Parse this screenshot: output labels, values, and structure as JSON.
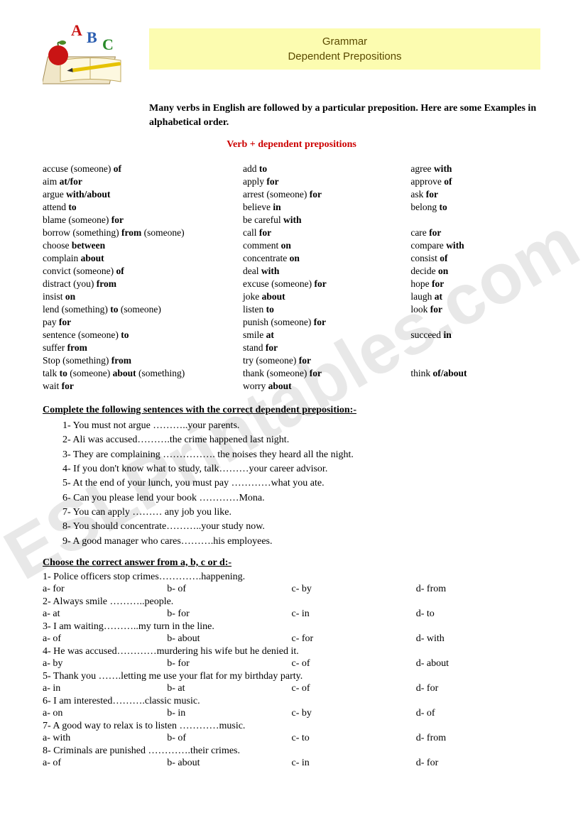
{
  "title_line1": "Grammar",
  "title_line2": "Dependent Prepositions",
  "intro": "Many verbs in English are followed by a particular preposition. Here are some Examples in alphabetical order.",
  "subhead": "Verb + dependent prepositions",
  "verbs_col1": [
    "accuse (someone) <b>of</b>",
    "aim <b>at/for</b>",
    "argue <b>with/about</b>",
    "attend <b>to</b>",
    "blame (someone) <b>for</b>",
    "borrow (something) <b>from</b> (someone)",
    "choose <b>between</b>",
    "complain <b>about</b>",
    "convict (someone) <b>of</b>",
    "distract (you) <b>from</b>",
    "insist <b>on</b>",
    "lend (something) <b>to</b> (someone)",
    "pay <b>for</b>",
    "sentence (someone) <b>to</b>",
    "suffer <b>from</b>",
    "Stop (something) <b>from</b>",
    "talk <b>to</b> (someone) <b>about</b> (something)",
    "wait <b>for</b>"
  ],
  "verbs_col2": [
    "add <b>to</b>",
    "apply <b>for</b>",
    "arrest (someone) <b>for</b>",
    "believe <b>in</b>",
    "be careful <b>with</b>",
    "call <b>for</b>",
    "comment <b>on</b>",
    "concentrate <b>on</b>",
    "deal <b>with</b>",
    "excuse (someone) <b>for</b>",
    "joke <b>about</b>",
    "listen <b>to</b>",
    "punish (someone) <b>for</b>",
    "smile <b>at</b>",
    "stand <b>for</b>",
    "try (someone) <b>for</b>",
    "thank (someone) <b>for</b>",
    "worry <b>about</b>"
  ],
  "verbs_col3": [
    "agree <b>with</b>",
    "approve <b>of</b>",
    "ask <b>for</b>",
    "belong <b>to</b>",
    "",
    "care <b>for</b>",
    "compare <b>with</b>",
    "consist <b>of</b>",
    "decide <b>on</b>",
    "hope <b>for</b>",
    "laugh <b>at</b>",
    "look <b>for</b>",
    "",
    "succeed <b>in</b>",
    "",
    "",
    "think <b>of/about</b>",
    ""
  ],
  "ex1_head": "Complete the following sentences with the correct dependent preposition:-",
  "ex1": [
    "1-   You must not argue ………..your parents.",
    "2-   Ali was accused……….the crime happened last night.",
    "3-   They are complaining ……………. the noises they heard all the night.",
    "4-   If you don't know what to study, talk………your career advisor.",
    "5-   At the end of your lunch, you must pay …………what you ate.",
    "6-   Can you please lend your book …………Mona.",
    "7-   You can apply ……… any job you like.",
    "8-   You should concentrate………..your study now.",
    "9-   A good manager who cares……….his employees."
  ],
  "ex2_head": "Choose the correct answer from a, b, c or d:-",
  "mc": [
    {
      "q": "1- Police officers stop crimes………….happening.",
      "a": "a- for",
      "b": "b- of",
      "c": "c- by",
      "d": "d- from"
    },
    {
      "q": "2- Always smile ………..people.",
      "a": "a- at",
      "b": "b- for",
      "c": "c- in",
      "d": "d- to"
    },
    {
      "q": "3- I am waiting………..my turn in the line.",
      "a": "a- of",
      "b": "b- about",
      "c": "c- for",
      "d": "d- with"
    },
    {
      "q": "4- He was accused…………murdering his wife but he denied it.",
      "a": "a- by",
      "b": "b- for",
      "c": "c- of",
      "d": "d- about"
    },
    {
      "q": "5- Thank you …….letting me use your flat for my birthday party.",
      "a": "a- in",
      "b": "b- at",
      "c": "c- of",
      "d": "d- for"
    },
    {
      "q": "6- I am interested……….classic music.",
      "a": "a- on",
      "b": "b- in",
      "c": "c- by",
      "d": "d- of"
    },
    {
      "q": "7- A good way to relax is to listen …………music.",
      "a": "a- with",
      "b": "b- of",
      "c": "c- to",
      "d": "d- from"
    },
    {
      "q": "8- Criminals are punished ………….their crimes.",
      "a": "a- of",
      "b": "b- about",
      "c": "c- in",
      "d": "d- for"
    }
  ],
  "watermark": "ESLPrintables.com"
}
